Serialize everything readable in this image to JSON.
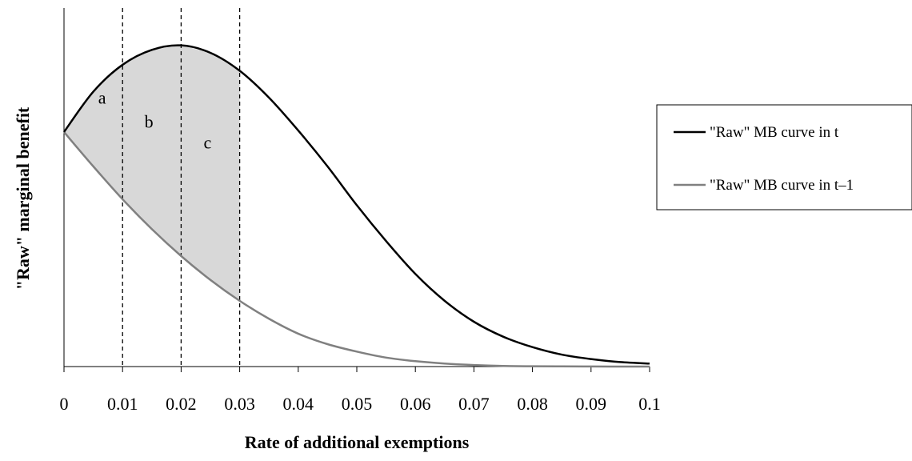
{
  "chart_data": {
    "type": "line",
    "title": "",
    "xlabel": "Rate of additional exemptions",
    "ylabel": "\"Raw\" marginal benefit",
    "xlim": [
      0,
      0.1
    ],
    "ylim": [
      0,
      1.2
    ],
    "x_ticks": [
      "0",
      "0.01",
      "0.02",
      "0.03",
      "0.04",
      "0.05",
      "0.06",
      "0.07",
      "0.08",
      "0.09",
      "0.1"
    ],
    "x_tick_values": [
      0,
      0.01,
      0.02,
      0.03,
      0.04,
      0.05,
      0.06,
      0.07,
      0.08,
      0.09,
      0.1
    ],
    "y_ticks_shown": false,
    "grid": false,
    "legend_position": "right",
    "series": [
      {
        "name": "\"Raw\" MB curve in t",
        "color": "#000000",
        "x": [
          0,
          0.005,
          0.01,
          0.015,
          0.02,
          0.025,
          0.03,
          0.035,
          0.04,
          0.045,
          0.05,
          0.055,
          0.06,
          0.065,
          0.07,
          0.075,
          0.08,
          0.085,
          0.09,
          0.095,
          0.1
        ],
        "y": [
          0.785,
          0.92,
          1.01,
          1.06,
          1.075,
          1.05,
          0.99,
          0.9,
          0.79,
          0.67,
          0.54,
          0.42,
          0.31,
          0.22,
          0.15,
          0.1,
          0.065,
          0.04,
          0.025,
          0.015,
          0.01
        ]
      },
      {
        "name": "\"Raw\" MB curve in t–1",
        "color": "#808080",
        "x": [
          0,
          0.005,
          0.01,
          0.015,
          0.02,
          0.025,
          0.03,
          0.035,
          0.04,
          0.045,
          0.05,
          0.055,
          0.06,
          0.065,
          0.07,
          0.075,
          0.08,
          0.085,
          0.09,
          0.095,
          0.1
        ],
        "y": [
          0.785,
          0.67,
          0.56,
          0.46,
          0.37,
          0.29,
          0.22,
          0.16,
          0.11,
          0.075,
          0.05,
          0.03,
          0.018,
          0.01,
          0.005,
          0.002,
          0.001,
          0.0005,
          0.0002,
          0.0001,
          0
        ]
      }
    ],
    "vertical_lines": [
      {
        "x": 0.01,
        "style": "dashed"
      },
      {
        "x": 0.02,
        "style": "dashed"
      },
      {
        "x": 0.03,
        "style": "dashed"
      }
    ],
    "shaded_region": {
      "between_series": [
        0,
        1
      ],
      "x_range": [
        0,
        0.03
      ],
      "color": "#d8d8d8"
    },
    "annotations": [
      {
        "text": "a",
        "x": 0.0065,
        "y": 0.88
      },
      {
        "text": "b",
        "x": 0.0145,
        "y": 0.8
      },
      {
        "text": "c",
        "x": 0.0245,
        "y": 0.73
      }
    ]
  }
}
